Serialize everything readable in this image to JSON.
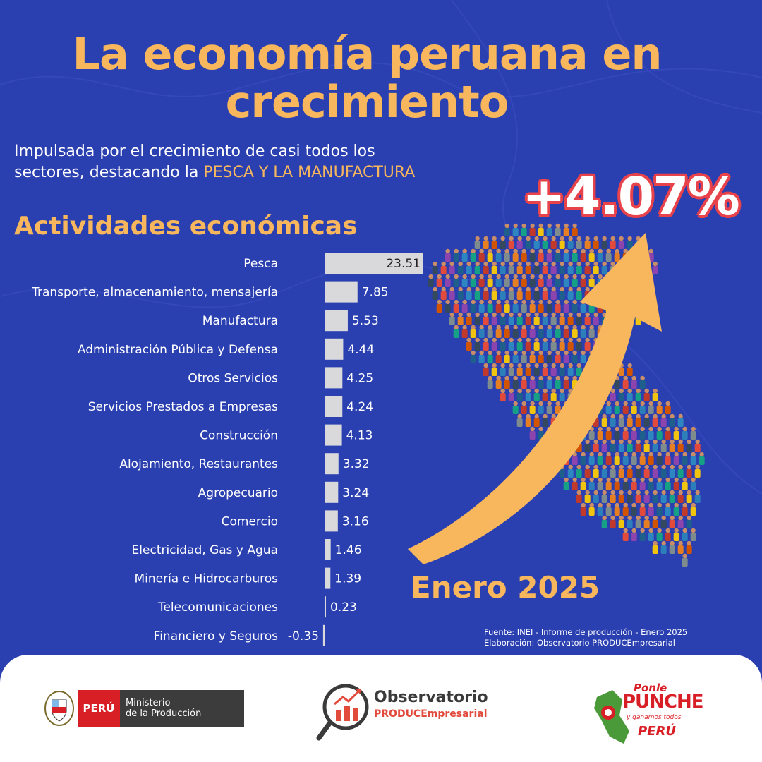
{
  "header": {
    "title_line1": "La economía peruana en",
    "title_line2": "crecimiento",
    "subtitle_pre": "Impulsada por el crecimiento de casi todos los sectores, destacando la ",
    "subtitle_highlight": "PESCA Y LA MANUFACTURA",
    "section_title": "Actividades económicas"
  },
  "headline": {
    "value": "+4.07%",
    "period": "Enero 2025"
  },
  "source": {
    "line1": "Fuente: INEI - Informe de producción - Enero 2025",
    "line2": "Elaboración: Observatorio PRODUCEmpresarial"
  },
  "colors": {
    "background": "#2a3fb0",
    "accent": "#f8b75c",
    "bar": "#d9d9dc",
    "red": "#e8424b"
  },
  "chart_data": {
    "type": "bar",
    "orientation": "horizontal",
    "categories": [
      "Pesca",
      "Transporte, almacenamiento, mensajería",
      "Manufactura",
      "Administración Pública y Defensa",
      "Otros Servicios",
      "Servicios Prestados a Empresas",
      "Construcción",
      "Alojamiento, Restaurantes",
      "Agropecuario",
      "Comercio",
      "Electricidad, Gas y Agua",
      "Minería e Hidrocarburos",
      "Telecomunicaciones",
      "Financiero y Seguros"
    ],
    "values": [
      23.51,
      7.85,
      5.53,
      4.44,
      4.25,
      4.24,
      4.13,
      3.32,
      3.24,
      3.16,
      1.46,
      1.39,
      0.23,
      -0.35
    ],
    "value_labels": [
      "23.51",
      "7.85",
      "5.53",
      "4.44",
      "4.25",
      "4.24",
      "4.13",
      "3.32",
      "3.24",
      "3.16",
      "1.46",
      "1.39",
      "0.23",
      "-0.35"
    ],
    "xlim": [
      -0.35,
      23.51
    ],
    "grid": false,
    "legend": "none"
  },
  "footer": {
    "logo1_country": "PERÚ",
    "logo1_line1": "Ministerio",
    "logo1_line2": "de la Producción",
    "logo2_line1": "Observatorio",
    "logo2_line2": "PRODUCEmpresarial",
    "logo3_line1": "Ponle",
    "logo3_line2": "PUNCHE",
    "logo3_line3": "y ganamos todos",
    "logo3_line4": "PERÚ"
  }
}
